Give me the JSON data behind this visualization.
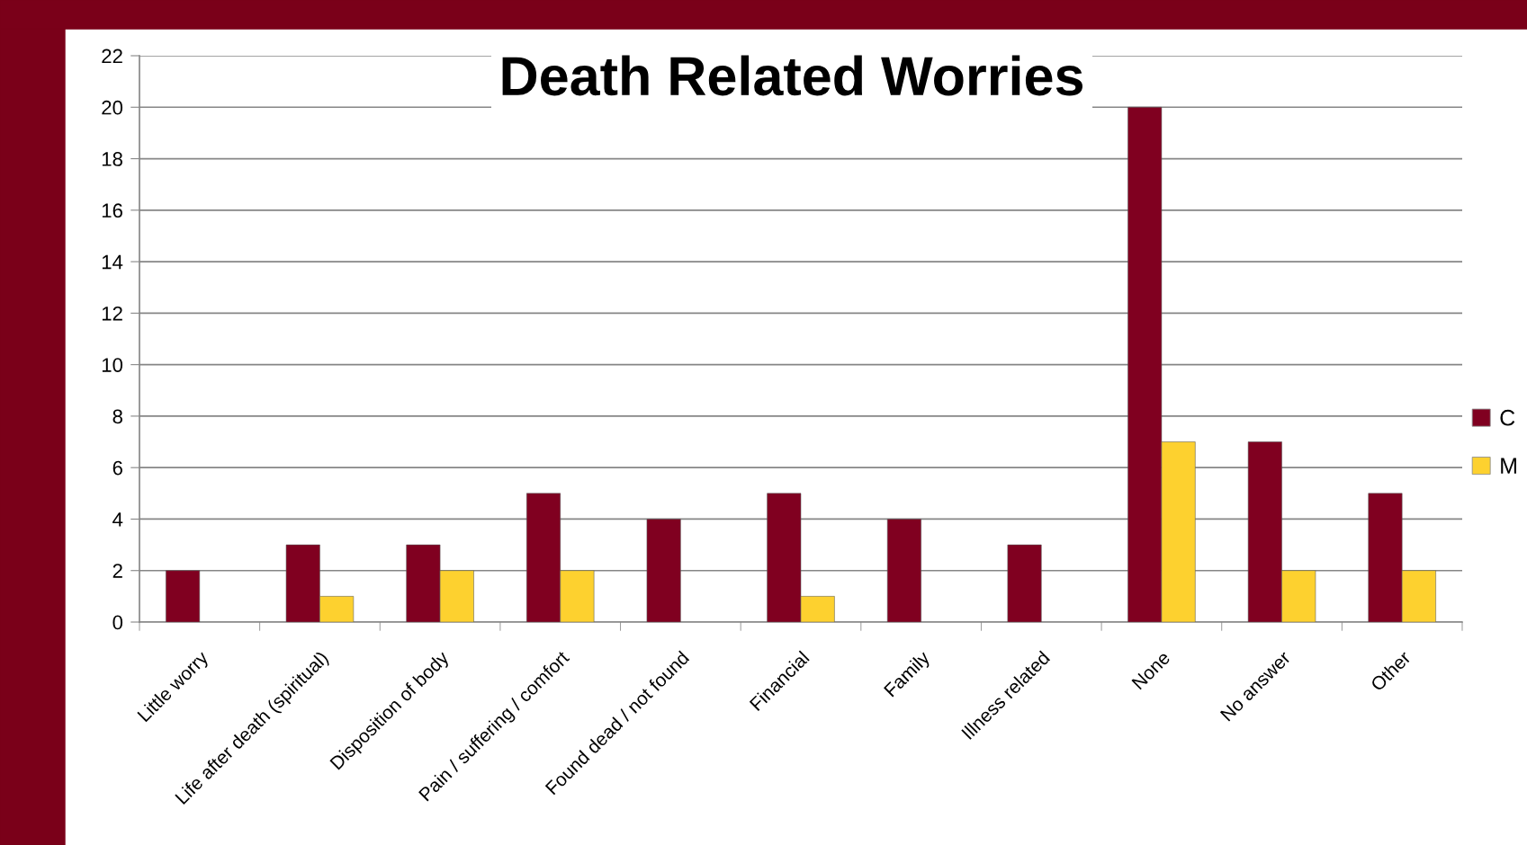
{
  "chart_data": {
    "type": "bar",
    "title": "Death Related Worries",
    "categories": [
      "Little worry",
      "Life after death (spiritual)",
      "Disposition of body",
      "Pain / suffering / comfort",
      "Found dead / not found",
      "Financial",
      "Family",
      "Illness related",
      "None",
      "No answer",
      "Other"
    ],
    "series": [
      {
        "name": "C",
        "color": "#800020",
        "values": [
          2,
          3,
          3,
          5,
          4,
          5,
          4,
          3,
          20,
          7,
          5
        ]
      },
      {
        "name": "M",
        "color": "#fdd12f",
        "values": [
          null,
          1,
          2,
          2,
          null,
          1,
          null,
          null,
          7,
          2,
          2
        ]
      }
    ],
    "ylim": [
      0,
      22
    ],
    "yticks": [
      0,
      2,
      4,
      6,
      8,
      10,
      12,
      14,
      16,
      18,
      20,
      22
    ],
    "grid": "y",
    "legend": "right"
  }
}
